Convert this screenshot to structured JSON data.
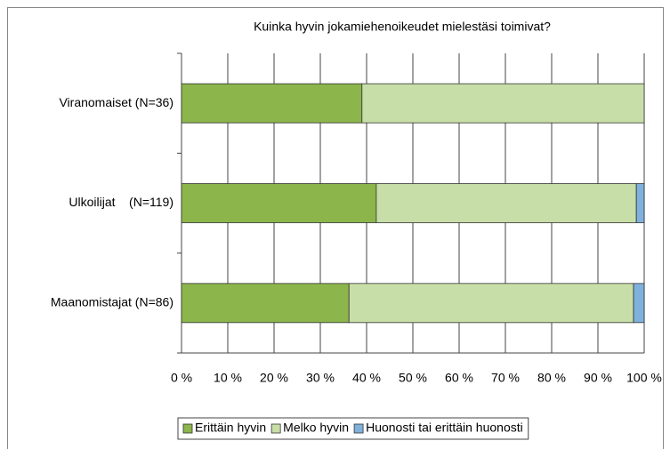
{
  "chart_data": {
    "type": "stacked_bar_horizontal",
    "title": "Kuinka hyvin jokamiehenoikeudet mielestäsi toimivat?",
    "categories": [
      "Viranomaiset (N=36)",
      "Ulkoilijat    (N=119)",
      "Maanomistajat (N=86)"
    ],
    "series": [
      {
        "name": "Erittäin hyvin",
        "color": "#8cb54c",
        "values": [
          39,
          42.1,
          36.2
        ]
      },
      {
        "name": "Melko hyvin",
        "color": "#c8dea8",
        "values": [
          61,
          56.2,
          61.5
        ]
      },
      {
        "name": "Huonosti tai erittäin huonosti",
        "color": "#7fb1dc",
        "values": [
          0,
          1.7,
          2.3
        ]
      }
    ],
    "xlim": [
      0,
      100
    ],
    "xticks": [
      {
        "value": 0,
        "label": "0 %"
      },
      {
        "value": 10,
        "label": "10 %"
      },
      {
        "value": 20,
        "label": "20 %"
      },
      {
        "value": 30,
        "label": "30 %"
      },
      {
        "value": 40,
        "label": "40 %"
      },
      {
        "value": 50,
        "label": "50 %"
      },
      {
        "value": 60,
        "label": "60 %"
      },
      {
        "value": 70,
        "label": "70 %"
      },
      {
        "value": 80,
        "label": "80 %"
      },
      {
        "value": 90,
        "label": "90 %"
      },
      {
        "value": 100,
        "label": "100 %"
      }
    ],
    "grid": true,
    "legend": "bottom"
  }
}
